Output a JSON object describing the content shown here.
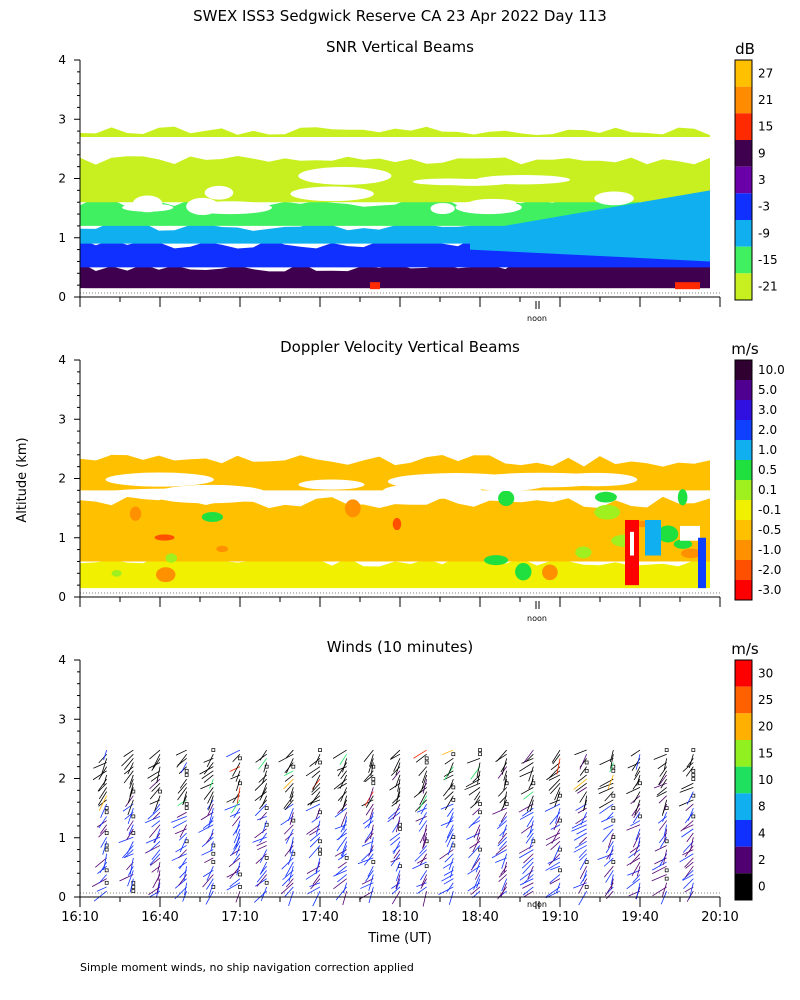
{
  "title": "SWEX ISS3 Sedgwick Reserve CA  23 Apr 2022 Day 113",
  "ylabel": "Altitude (km)",
  "xlabel": "Time (UT)",
  "footnote": "Simple moment winds, no ship navigation correction applied",
  "noon_label": "noon",
  "x_ticks": [
    "16:10",
    "16:40",
    "17:10",
    "17:40",
    "18:10",
    "18:40",
    "19:10",
    "19:40",
    "20:10"
  ],
  "y_ticks": [
    "0",
    "1",
    "2",
    "3",
    "4"
  ],
  "panels": [
    {
      "title": "SNR Vertical Beams",
      "unit": "dB",
      "colorbar_labels": [
        "27",
        "21",
        "15",
        "9",
        "3",
        "-3",
        "-9",
        "-15",
        "-21"
      ],
      "colorbar_colors": [
        "#ffc000",
        "#ff8c00",
        "#ff2a00",
        "#400050",
        "#6a00a8",
        "#1030ff",
        "#10b0f0",
        "#40f060",
        "#c8f020"
      ]
    },
    {
      "title": "Doppler Velocity Vertical Beams",
      "unit": "m/s",
      "colorbar_labels": [
        "10.0",
        "5.0",
        "3.0",
        "2.0",
        "1.0",
        "0.5",
        "0.1",
        "-0.1",
        "-0.5",
        "-1.0",
        "-2.0",
        "-3.0"
      ],
      "colorbar_colors": [
        "#300030",
        "#500090",
        "#3010e0",
        "#1040ff",
        "#10b0f0",
        "#20e040",
        "#a0f020",
        "#f0f000",
        "#ffc000",
        "#ff9000",
        "#ff5000",
        "#ff0000"
      ]
    },
    {
      "title": "Winds (10 minutes)",
      "unit": "m/s",
      "colorbar_labels": [
        "30",
        "25",
        "20",
        "15",
        "10",
        "8",
        "4",
        "2",
        "0"
      ],
      "colorbar_colors": [
        "#ff0000",
        "#ff6000",
        "#ffb000",
        "#90f020",
        "#20e060",
        "#10b0f0",
        "#1030ff",
        "#500070",
        "#000000"
      ]
    }
  ],
  "chart_data": [
    {
      "type": "heatmap",
      "title": "SNR Vertical Beams",
      "unit": "dB",
      "xlabel": "",
      "ylabel": "Altitude (km)",
      "x_range": [
        "16:10",
        "20:10"
      ],
      "ylim": [
        0,
        4
      ],
      "layers": [
        {
          "from_km": 0.15,
          "to_km": 0.5,
          "dB": 9
        },
        {
          "from_km": 0.5,
          "to_km": 0.9,
          "dB": -3
        },
        {
          "from_km": 0.9,
          "to_km": 1.2,
          "dB": -9
        },
        {
          "from_km": 1.2,
          "to_km": 1.6,
          "dB": -15
        },
        {
          "from_km": 1.6,
          "to_km": 2.3,
          "dB": -21
        },
        {
          "from_km": 2.7,
          "to_km": 2.8,
          "dB": -21
        }
      ]
    },
    {
      "type": "heatmap",
      "title": "Doppler Velocity Vertical Beams",
      "unit": "m/s",
      "xlabel": "",
      "ylabel": "Altitude (km)",
      "x_range": [
        "16:10",
        "20:10"
      ],
      "ylim": [
        0,
        4
      ],
      "layers": [
        {
          "from_km": 0.15,
          "to_km": 0.6,
          "ms": -0.1
        },
        {
          "from_km": 0.6,
          "to_km": 1.6,
          "ms": -0.5
        },
        {
          "from_km": 1.8,
          "to_km": 2.3,
          "ms": -0.5
        }
      ]
    },
    {
      "type": "scatter",
      "title": "Winds (10 minutes)",
      "unit": "m/s",
      "xlabel": "Time (UT)",
      "ylabel": "Altitude (km)",
      "x_range": [
        "16:10",
        "20:10"
      ],
      "ylim": [
        0,
        4
      ],
      "profiles_every_minutes": 10,
      "profile_top_km": 2.5,
      "typical_speed_ms": [
        2,
        8
      ]
    }
  ]
}
